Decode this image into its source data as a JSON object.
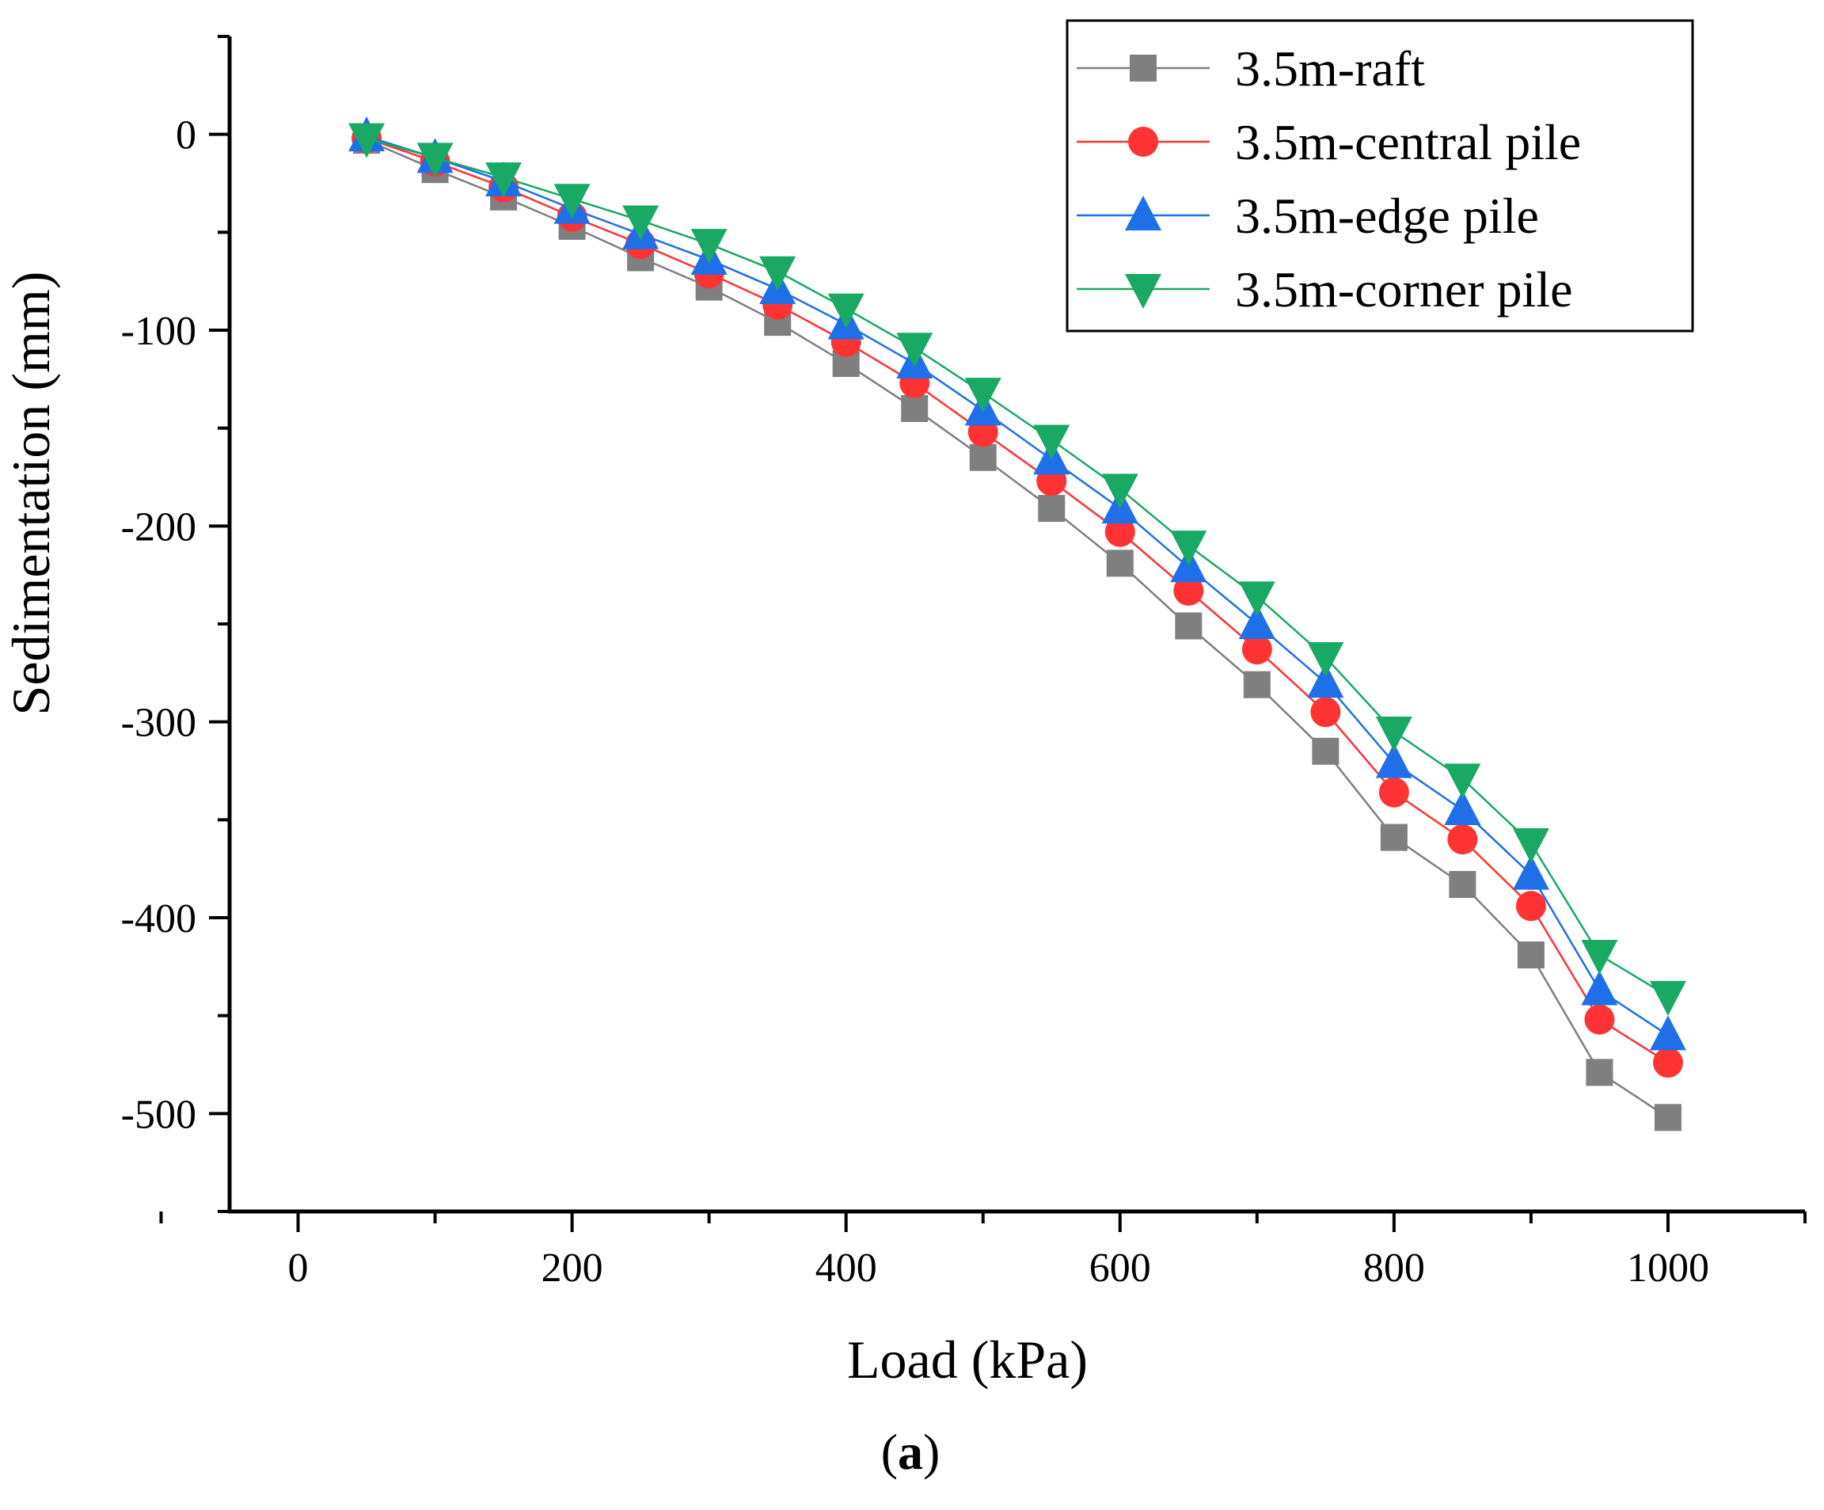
{
  "chart_data": {
    "type": "line",
    "title": "",
    "xlabel": "Load (kPa)",
    "ylabel": "Sedimentation (mm)",
    "caption": {
      "open": "(",
      "letter": "a",
      "close": ")"
    },
    "xlim": [
      -50,
      1100
    ],
    "ylim": [
      -550,
      50
    ],
    "xticks": [
      0,
      200,
      400,
      600,
      800,
      1000
    ],
    "yticks": [
      0,
      -100,
      -200,
      -300,
      -400,
      -500
    ],
    "legend_position": "top-right",
    "x": [
      50,
      100,
      150,
      200,
      250,
      300,
      350,
      400,
      450,
      500,
      550,
      600,
      650,
      700,
      750,
      800,
      850,
      900,
      950,
      1000
    ],
    "series": [
      {
        "name": "3.5m-raft",
        "marker": "square",
        "color": "#7f7f7f",
        "values": [
          -3,
          -18,
          -32,
          -47,
          -63,
          -78,
          -96,
          -117,
          -140,
          -165,
          -191,
          -219,
          -251,
          -281,
          -315,
          -359,
          -383,
          -419,
          -479,
          -502
        ]
      },
      {
        "name": "3.5m-central pile",
        "marker": "circle",
        "color": "#ff3333",
        "values": [
          -2,
          -14,
          -27,
          -42,
          -56,
          -71,
          -87,
          -106,
          -127,
          -152,
          -177,
          -203,
          -233,
          -263,
          -295,
          -336,
          -360,
          -394,
          -452,
          -474
        ]
      },
      {
        "name": "3.5m-edge pile",
        "marker": "triangle-up",
        "color": "#1f6fe8",
        "values": [
          -1,
          -12,
          -24,
          -38,
          -51,
          -64,
          -79,
          -97,
          -117,
          -141,
          -166,
          -191,
          -221,
          -250,
          -280,
          -321,
          -345,
          -378,
          -437,
          -460
        ]
      },
      {
        "name": "3.5m-corner pile",
        "marker": "triangle-down",
        "color": "#1aa865",
        "values": [
          -2,
          -12,
          -22,
          -33,
          -44,
          -56,
          -70,
          -89,
          -109,
          -132,
          -156,
          -181,
          -210,
          -236,
          -267,
          -305,
          -329,
          -362,
          -419,
          -440
        ]
      }
    ]
  }
}
